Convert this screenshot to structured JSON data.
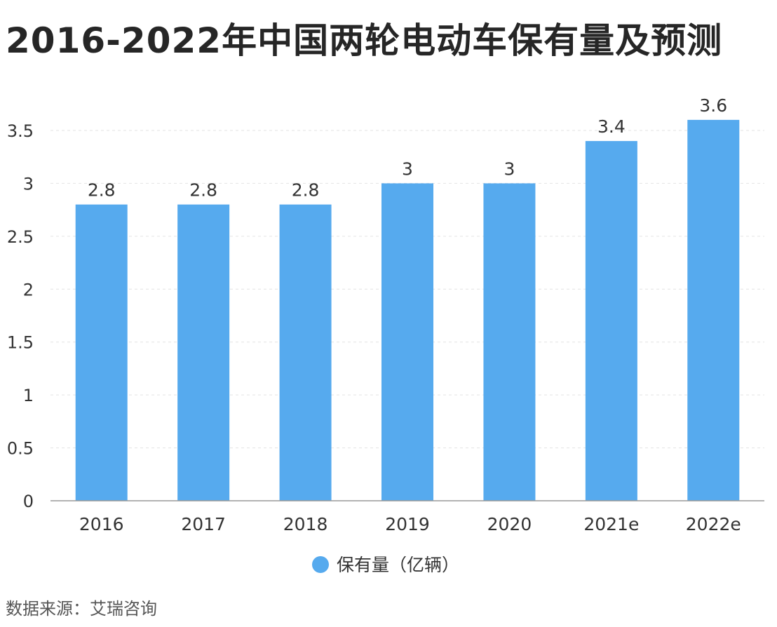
{
  "chart_data": {
    "type": "bar",
    "title": "2016-2022年中国两轮电动车保有量及预测",
    "categories": [
      "2016",
      "2017",
      "2018",
      "2019",
      "2020",
      "2021e",
      "2022e"
    ],
    "series": [
      {
        "name": "保有量（亿辆）",
        "values": [
          2.8,
          2.8,
          2.8,
          3,
          3,
          3.4,
          3.6
        ],
        "value_labels": [
          "2.8",
          "2.8",
          "2.8",
          "3",
          "3",
          "3.4",
          "3.6"
        ]
      }
    ],
    "y_ticks": [
      0,
      0.5,
      1,
      1.5,
      2,
      2.5,
      3,
      3.5
    ],
    "y_tick_labels": [
      "0",
      "0.5",
      "1",
      "1.5",
      "2",
      "2.5",
      "3",
      "3.5"
    ],
    "ylim": [
      0,
      3.5
    ],
    "xlabel": "",
    "ylabel": "",
    "grid": true,
    "legend_position": "bottom-center",
    "bar_color": "#56aaee"
  },
  "source": "数据来源：艾瑞咨询"
}
